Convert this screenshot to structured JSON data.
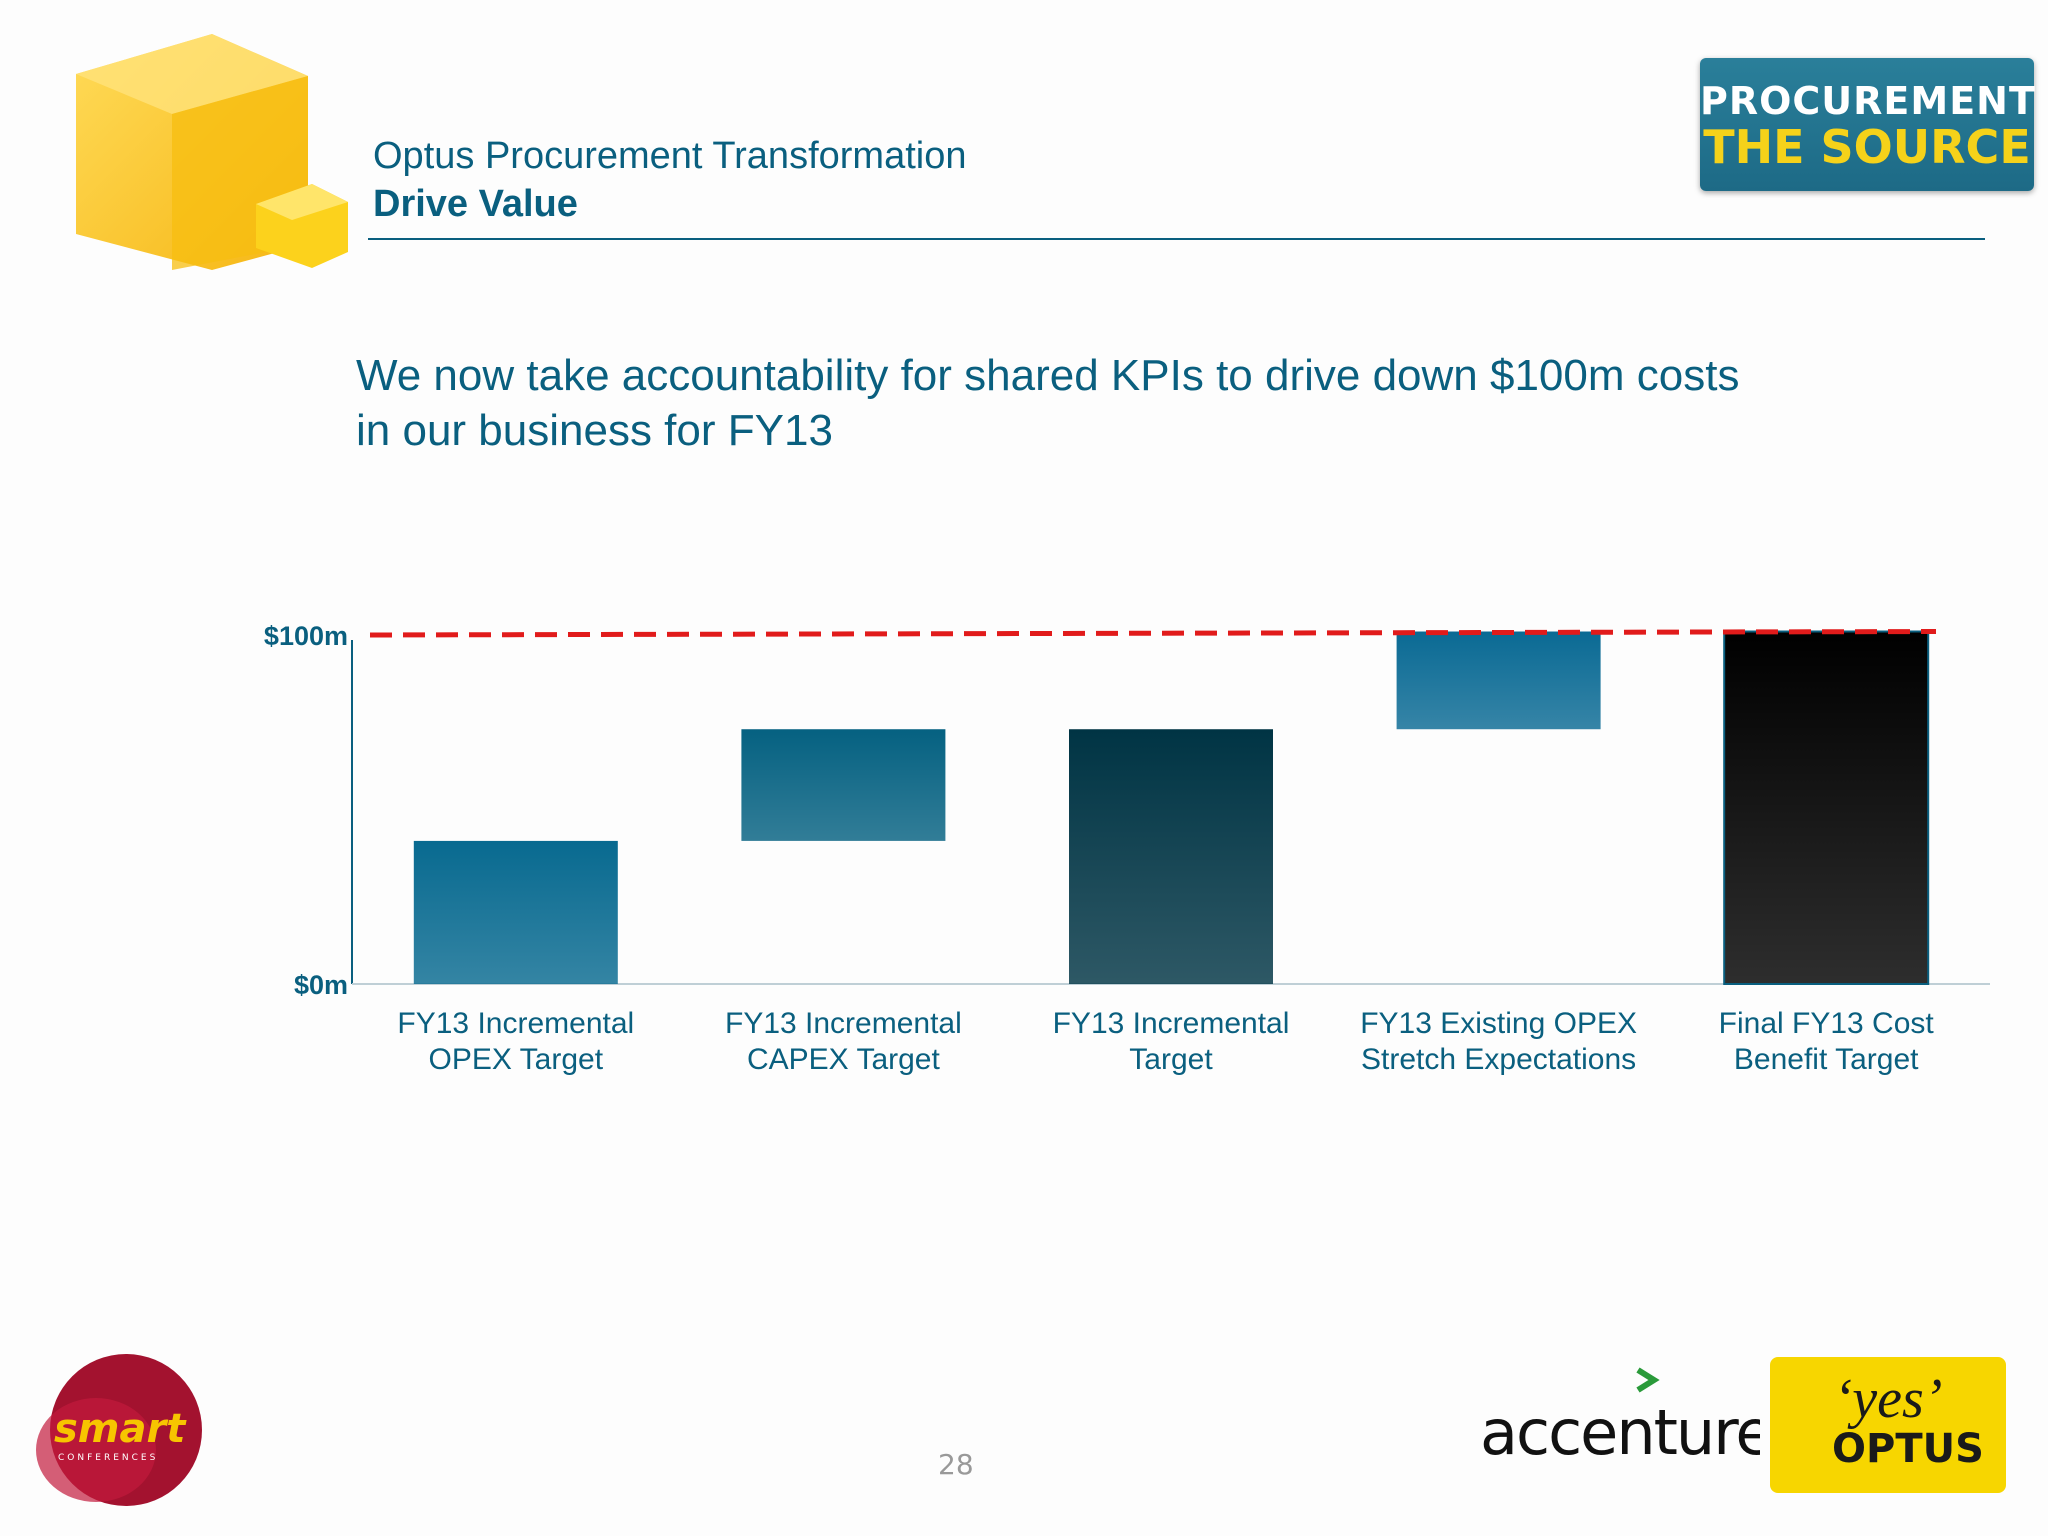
{
  "header": {
    "title": "Optus Procurement Transformation",
    "subtitle": "Drive Value",
    "badge_line1": "PROCUREMENT",
    "badge_line2": "THE SOURCE"
  },
  "headline": "We now take accountability for shared KPIs to drive down $100m costs in our business for FY13",
  "chart_data": {
    "type": "bar",
    "subtype": "waterfall",
    "categories": [
      [
        "FY13 Incremental",
        "OPEX Target"
      ],
      [
        "FY13 Incremental",
        "CAPEX Target"
      ],
      [
        "FY13 Incremental",
        "Target"
      ],
      [
        "FY13 Existing OPEX",
        "Stretch Expectations"
      ],
      [
        "Final FY13 Cost",
        "Benefit Target"
      ]
    ],
    "bars": [
      {
        "base": 0,
        "top": 41
      },
      {
        "base": 41,
        "top": 73
      },
      {
        "base": 0,
        "top": 73
      },
      {
        "base": 73,
        "top": 101
      },
      {
        "base": 0,
        "top": 101
      }
    ],
    "colors": [
      "#086a90",
      "#056181",
      "#003444",
      "#0a6a94",
      "#000000"
    ],
    "yticks": [
      {
        "value": 0,
        "label": "$0m"
      },
      {
        "value": 100,
        "label": "$100m"
      }
    ],
    "ylim": [
      0,
      100
    ],
    "target_line": {
      "y_start": 100,
      "y_end": 101,
      "color": "#e11b1b",
      "style": "dashed"
    },
    "grid": false
  },
  "footer": {
    "page_number": "28",
    "smart_text": "smart",
    "smart_sub": "CONFERENCES",
    "accenture_text": "accenture",
    "yes_text": "‘yes’",
    "optus_text": "OPTUS"
  }
}
